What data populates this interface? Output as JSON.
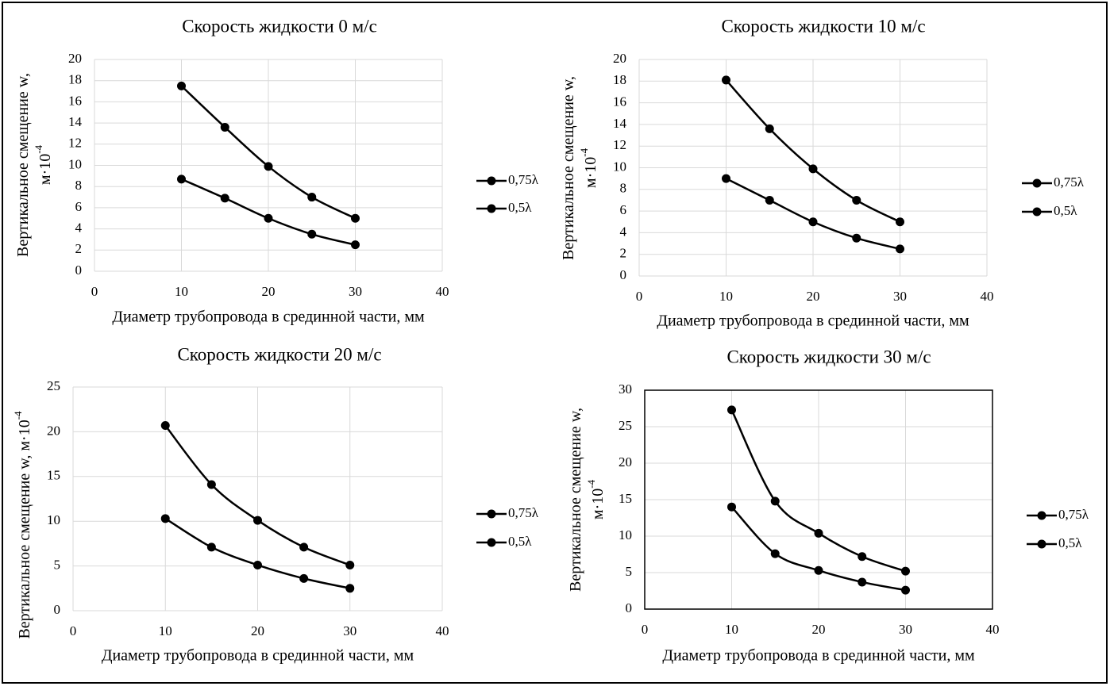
{
  "chart_data": [
    {
      "type": "line",
      "title": "Скорость жидкости 0 м/с",
      "x_label": "Диаметр трубопровода в срединной части, мм",
      "y_label": {
        "lines": [
          "Вертикальное смещение w,",
          "м·10"
        ],
        "superscript": "-4"
      },
      "x": [
        10,
        15,
        20,
        25,
        30
      ],
      "xlim": [
        0,
        40
      ],
      "xticks": [
        0,
        10,
        20,
        30,
        40
      ],
      "ylim": [
        0,
        20
      ],
      "yticks": [
        0,
        2,
        4,
        6,
        8,
        10,
        12,
        14,
        16,
        18,
        20
      ],
      "grid": true,
      "smooth": true,
      "frame": false,
      "series": [
        {
          "name": "0,75λ",
          "color": "#000000",
          "values": [
            17.5,
            13.6,
            9.9,
            7.0,
            5.0
          ]
        },
        {
          "name": "0,5λ",
          "color": "#000000",
          "values": [
            8.7,
            6.9,
            5.0,
            3.5,
            2.5
          ]
        }
      ]
    },
    {
      "type": "line",
      "title": "Скорость жидкости 10 м/с",
      "x_label": "Диаметр трубопровода в срединной части, мм",
      "y_label": {
        "lines": [
          "Вертикальное смещение w,",
          "м·10"
        ],
        "superscript": "-4"
      },
      "x": [
        10,
        15,
        20,
        25,
        30
      ],
      "xlim": [
        0,
        40
      ],
      "xticks": [
        0,
        10,
        20,
        30,
        40
      ],
      "ylim": [
        0,
        20
      ],
      "yticks": [
        0,
        2,
        4,
        6,
        8,
        10,
        12,
        14,
        16,
        18,
        20
      ],
      "grid": true,
      "smooth": true,
      "frame": false,
      "series": [
        {
          "name": "0,75λ",
          "color": "#000000",
          "values": [
            18.1,
            13.6,
            9.9,
            7.0,
            5.0
          ]
        },
        {
          "name": "0,5λ",
          "color": "#000000",
          "values": [
            9.0,
            7.0,
            5.0,
            3.5,
            2.5
          ]
        }
      ]
    },
    {
      "type": "line",
      "title": "Скорость жидкости 20 м/с",
      "x_label": "Диаметр трубопровода в срединной части, мм",
      "y_label": {
        "lines": [
          "Вертикальное смещение w, м·10"
        ],
        "superscript": "-4"
      },
      "x": [
        10,
        15,
        20,
        25,
        30
      ],
      "xlim": [
        0,
        40
      ],
      "xticks": [
        0,
        10,
        20,
        30,
        40
      ],
      "ylim": [
        0,
        25
      ],
      "yticks": [
        0,
        5,
        10,
        15,
        20,
        25
      ],
      "grid": true,
      "smooth": true,
      "frame": false,
      "series": [
        {
          "name": "0,75λ",
          "color": "#000000",
          "values": [
            20.7,
            14.1,
            10.1,
            7.1,
            5.1
          ]
        },
        {
          "name": "0,5λ",
          "color": "#000000",
          "values": [
            10.3,
            7.1,
            5.1,
            3.6,
            2.5
          ]
        }
      ]
    },
    {
      "type": "line",
      "title": "Скорость жидкости 30 м/с",
      "x_label": "Диаметр трубопровода в срединной части, мм",
      "y_label": {
        "lines": [
          "Вертикальное смещение w,",
          "м·10"
        ],
        "superscript": "-4"
      },
      "x": [
        10,
        15,
        20,
        25,
        30
      ],
      "xlim": [
        0,
        40
      ],
      "xticks": [
        0,
        10,
        20,
        30,
        40
      ],
      "ylim": [
        0,
        30
      ],
      "yticks": [
        0,
        5,
        10,
        15,
        20,
        25,
        30
      ],
      "grid": true,
      "smooth": true,
      "frame": true,
      "series": [
        {
          "name": "0,75λ",
          "color": "#000000",
          "values": [
            27.3,
            14.8,
            10.4,
            7.2,
            5.2
          ]
        },
        {
          "name": "0,5λ",
          "color": "#000000",
          "values": [
            14.0,
            7.6,
            5.3,
            3.7,
            2.6
          ]
        }
      ]
    }
  ]
}
